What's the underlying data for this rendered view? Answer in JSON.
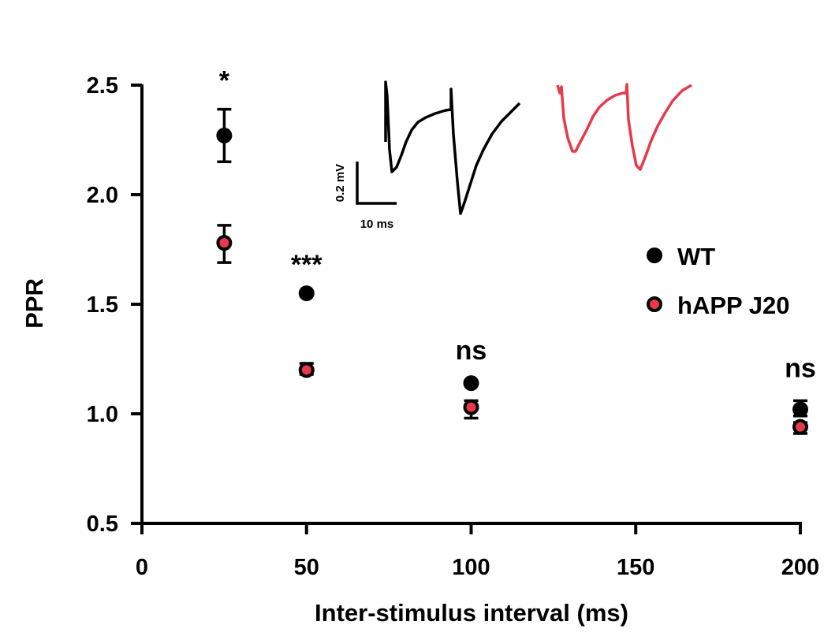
{
  "chart_data": {
    "type": "scatter",
    "xlabel": "Inter-stimulus interval (ms)",
    "ylabel": "PPR",
    "xlim": [
      0,
      200
    ],
    "ylim": [
      0.5,
      2.5
    ],
    "x_ticks": [
      0,
      50,
      100,
      150,
      200
    ],
    "y_ticks": [
      0.5,
      1.0,
      1.5,
      2.0,
      2.5
    ],
    "x_tick_labels": [
      "0",
      "50",
      "100",
      "150",
      "200"
    ],
    "y_tick_labels": [
      "0.5",
      "1.0",
      "1.5",
      "2.0",
      "2.5"
    ],
    "legend_position": "right",
    "series": [
      {
        "name": "WT",
        "color": "#000000",
        "marker": "filled-circle",
        "points": [
          {
            "x": 25,
            "y": 2.27,
            "err_low": 2.15,
            "err_high": 2.39
          },
          {
            "x": 50,
            "y": 1.55,
            "err_low": 1.55,
            "err_high": 1.55
          },
          {
            "x": 100,
            "y": 1.14,
            "err_low": 1.14,
            "err_high": 1.14
          },
          {
            "x": 200,
            "y": 1.02,
            "err_low": 0.99,
            "err_high": 1.06
          }
        ]
      },
      {
        "name": "hAPP J20",
        "color": "#e8394a",
        "marker": "circle-black-outline",
        "points": [
          {
            "x": 25,
            "y": 1.78,
            "err_low": 1.69,
            "err_high": 1.86
          },
          {
            "x": 50,
            "y": 1.2,
            "err_low": 1.18,
            "err_high": 1.23
          },
          {
            "x": 100,
            "y": 1.03,
            "err_low": 0.98,
            "err_high": 1.06
          },
          {
            "x": 200,
            "y": 0.94,
            "err_low": 0.91,
            "err_high": 0.96
          }
        ]
      }
    ],
    "annotations": [
      {
        "x": 25,
        "text": "*"
      },
      {
        "x": 50,
        "text": "***"
      },
      {
        "x": 100,
        "text": "ns"
      },
      {
        "x": 200,
        "text": "ns"
      }
    ],
    "inset": {
      "scale_bar_y": "0.2 mV",
      "scale_bar_x": "10 ms",
      "trace_colors": [
        "#000000",
        "#e8394a"
      ]
    }
  }
}
